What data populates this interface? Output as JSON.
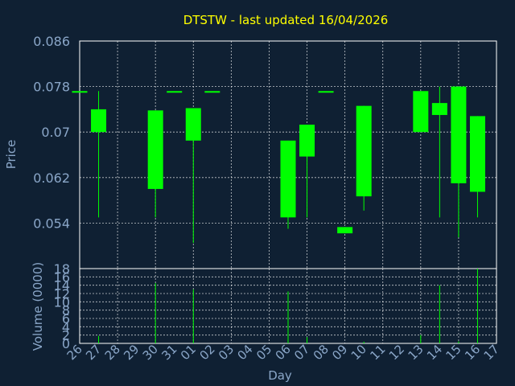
{
  "chart_data": {
    "type": "candlestick",
    "title": "DTSTW - last updated 16/04/2026",
    "price_axis": {
      "label": "Price",
      "ylim": [
        0.046,
        0.086
      ],
      "ticks": [
        "0.086",
        "0.078",
        "0.07",
        "0.062",
        "0.054"
      ],
      "tick_values": [
        0.086,
        0.078,
        0.07,
        0.062,
        0.054
      ]
    },
    "volume_axis": {
      "label": "Volume (0000)",
      "ylim": [
        0,
        18
      ],
      "ticks": [
        "18",
        "16",
        "14",
        "12",
        "10",
        "8",
        "6",
        "4",
        "2",
        "0"
      ],
      "tick_values": [
        18,
        16,
        14,
        12,
        10,
        8,
        6,
        4,
        2,
        0
      ]
    },
    "x_axis": {
      "label": "Day",
      "ticks": [
        "26",
        "27",
        "28",
        "29",
        "30",
        "31",
        "01",
        "02",
        "03",
        "04",
        "05",
        "06",
        "07",
        "08",
        "09",
        "10",
        "11",
        "12",
        "13",
        "14",
        "15",
        "16",
        "17"
      ]
    },
    "series": [
      {
        "x": 26,
        "open": 0.0772,
        "close": 0.0772,
        "high": 0.0772,
        "low": 0.0772,
        "volume": 0
      },
      {
        "x": 27,
        "open": 0.07,
        "close": 0.074,
        "high": 0.0772,
        "low": 0.055,
        "volume": 1.8
      },
      {
        "x": 30,
        "open": 0.06,
        "close": 0.0738,
        "high": 0.0738,
        "low": 0.055,
        "volume": 14.5
      },
      {
        "x": 31,
        "open": 0.0772,
        "close": 0.0772,
        "high": 0.0772,
        "low": 0.0772,
        "volume": 0
      },
      {
        "x": 32,
        "open": 0.0685,
        "close": 0.0742,
        "high": 0.0742,
        "low": 0.0505,
        "volume": 13.0
      },
      {
        "x": 33,
        "open": 0.0772,
        "close": 0.0772,
        "high": 0.0772,
        "low": 0.0772,
        "volume": 0
      },
      {
        "x": 37,
        "open": 0.0685,
        "close": 0.055,
        "high": 0.0685,
        "low": 0.053,
        "volume": 12.5
      },
      {
        "x": 38,
        "open": 0.0657,
        "close": 0.0713,
        "high": 0.0713,
        "low": 0.055,
        "volume": 1.5
      },
      {
        "x": 39,
        "open": 0.0772,
        "close": 0.0772,
        "high": 0.0772,
        "low": 0.0772,
        "volume": 0
      },
      {
        "x": 40,
        "open": 0.0533,
        "close": 0.0522,
        "high": 0.0533,
        "low": 0.0522,
        "volume": 0
      },
      {
        "x": 41,
        "open": 0.0587,
        "close": 0.0746,
        "high": 0.0746,
        "low": 0.0562,
        "volume": 0.4
      },
      {
        "x": 44,
        "open": 0.07,
        "close": 0.0772,
        "high": 0.0772,
        "low": 0.07,
        "volume": 2.0
      },
      {
        "x": 45,
        "open": 0.073,
        "close": 0.0751,
        "high": 0.078,
        "low": 0.055,
        "volume": 14.0
      },
      {
        "x": 46,
        "open": 0.061,
        "close": 0.078,
        "high": 0.078,
        "low": 0.0515,
        "volume": 0.5
      },
      {
        "x": 47,
        "open": 0.0595,
        "close": 0.0728,
        "high": 0.0728,
        "low": 0.055,
        "volume": 18.0
      }
    ],
    "candle_color": "#00ff00",
    "background": "#0f2033",
    "grid_color": "#ffffff",
    "axis_text_color": "#8aa6c8",
    "title_color": "#ffff00",
    "grid": true
  }
}
